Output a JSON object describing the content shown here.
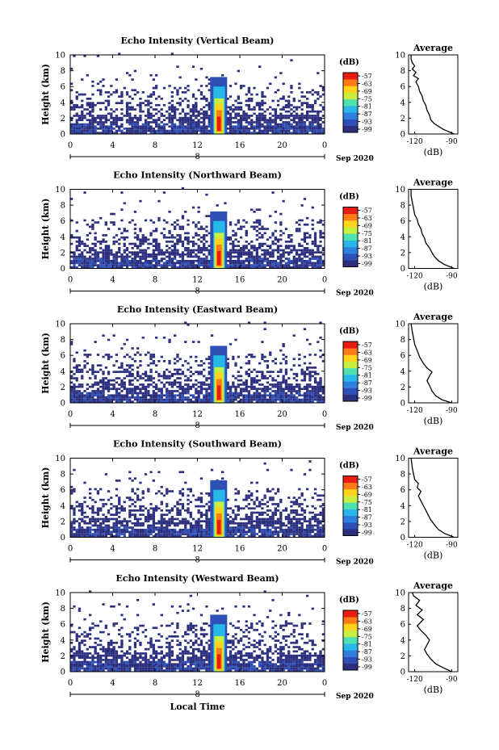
{
  "chart_data": {
    "type": "heatmap",
    "xlabel_bottom": "Local Time",
    "date_label": "Sep 2020",
    "x_ticks": [
      "0",
      "4",
      "8",
      "12",
      "16",
      "20",
      "0"
    ],
    "x_range": [
      0,
      24
    ],
    "day_label": "8",
    "y_ticks": [
      "0",
      "2",
      "4",
      "6",
      "8",
      "10"
    ],
    "ylabel": "Height (km)",
    "y_range": [
      0,
      10
    ],
    "colorbar": {
      "unit_label": "(dB)",
      "tick_labels": [
        "-57",
        "-63",
        "-69",
        "-75",
        "-81",
        "-87",
        "-93",
        "-99"
      ],
      "colors": [
        "#2b2f7e",
        "#2e4fb5",
        "#2f7fe0",
        "#26b8e8",
        "#4fe0b0",
        "#c8ef40",
        "#ffd21c",
        "#ff7a18",
        "#e81c10"
      ]
    },
    "panels": [
      {
        "title": "Echo Intensity (Vertical Beam)",
        "average": {
          "title": "Average",
          "xlabel": "(dB)",
          "x_ticks": [
            "-120",
            "-90"
          ],
          "xlim": [
            -125,
            -85
          ],
          "profile": [
            [
              -88,
              0.0
            ],
            [
              -97,
              0.6
            ],
            [
              -101,
              1.0
            ],
            [
              -104,
              1.3
            ],
            [
              -107,
              1.8
            ],
            [
              -108,
              2.4
            ],
            [
              -110,
              3.0
            ],
            [
              -111,
              3.6
            ],
            [
              -113,
              4.2
            ],
            [
              -114,
              4.8
            ],
            [
              -116,
              5.4
            ],
            [
              -117,
              6.0
            ],
            [
              -119,
              6.6
            ],
            [
              -117,
              7.0
            ],
            [
              -121,
              7.4
            ],
            [
              -119,
              7.8
            ],
            [
              -122,
              8.2
            ],
            [
              -120,
              8.6
            ],
            [
              -122,
              9.0
            ],
            [
              -123,
              9.5
            ],
            [
              -123,
              10.0
            ]
          ]
        }
      },
      {
        "title": "Echo Intensity (Northward Beam)",
        "average": {
          "title": "Average",
          "xlabel": "(dB)",
          "x_ticks": [
            "-120",
            "-90"
          ],
          "xlim": [
            -125,
            -85
          ],
          "profile": [
            [
              -88,
              0.0
            ],
            [
              -96,
              0.5
            ],
            [
              -101,
              1.0
            ],
            [
              -104,
              1.5
            ],
            [
              -106,
              2.0
            ],
            [
              -108,
              2.6
            ],
            [
              -111,
              3.2
            ],
            [
              -112,
              3.8
            ],
            [
              -114,
              4.4
            ],
            [
              -115,
              5.0
            ],
            [
              -117,
              5.6
            ],
            [
              -118,
              6.2
            ],
            [
              -120,
              6.8
            ],
            [
              -121,
              7.6
            ],
            [
              -122,
              8.4
            ],
            [
              -123,
              9.2
            ],
            [
              -123,
              10.0
            ]
          ]
        }
      },
      {
        "title": "Echo Intensity (Eastward Beam)",
        "average": {
          "title": "Average",
          "xlabel": "(dB)",
          "x_ticks": [
            "-120",
            "-90"
          ],
          "xlim": [
            -125,
            -85
          ],
          "profile": [
            [
              -90,
              0.0
            ],
            [
              -98,
              0.4
            ],
            [
              -103,
              0.9
            ],
            [
              -106,
              1.5
            ],
            [
              -108,
              2.2
            ],
            [
              -110,
              2.8
            ],
            [
              -108,
              3.4
            ],
            [
              -106,
              3.9
            ],
            [
              -110,
              4.4
            ],
            [
              -113,
              5.0
            ],
            [
              -116,
              5.8
            ],
            [
              -118,
              6.6
            ],
            [
              -120,
              7.4
            ],
            [
              -121,
              8.2
            ],
            [
              -122,
              9.0
            ],
            [
              -123,
              10.0
            ]
          ]
        }
      },
      {
        "title": "Echo Intensity (Southward Beam)",
        "average": {
          "title": "Average",
          "xlabel": "(dB)",
          "x_ticks": [
            "-120",
            "-90"
          ],
          "xlim": [
            -125,
            -85
          ],
          "profile": [
            [
              -88,
              0.0
            ],
            [
              -96,
              0.5
            ],
            [
              -101,
              1.0
            ],
            [
              -104,
              1.6
            ],
            [
              -107,
              2.2
            ],
            [
              -109,
              2.8
            ],
            [
              -111,
              3.4
            ],
            [
              -113,
              4.0
            ],
            [
              -115,
              4.6
            ],
            [
              -117,
              5.2
            ],
            [
              -115,
              5.8
            ],
            [
              -118,
              6.3
            ],
            [
              -117,
              6.8
            ],
            [
              -120,
              7.3
            ],
            [
              -121,
              8.0
            ],
            [
              -122,
              8.8
            ],
            [
              -123,
              10.0
            ]
          ]
        }
      },
      {
        "title": "Echo Intensity (Westward Beam)",
        "average": {
          "title": "Average",
          "xlabel": "(dB)",
          "x_ticks": [
            "-120",
            "-90"
          ],
          "xlim": [
            -125,
            -85
          ],
          "profile": [
            [
              -90,
              0.0
            ],
            [
              -97,
              0.5
            ],
            [
              -103,
              1.0
            ],
            [
              -107,
              1.6
            ],
            [
              -110,
              2.2
            ],
            [
              -112,
              2.8
            ],
            [
              -110,
              3.4
            ],
            [
              -108,
              4.0
            ],
            [
              -111,
              4.6
            ],
            [
              -115,
              5.2
            ],
            [
              -118,
              5.8
            ],
            [
              -113,
              6.6
            ],
            [
              -118,
              7.2
            ],
            [
              -114,
              7.8
            ],
            [
              -119,
              8.4
            ],
            [
              -116,
              9.0
            ],
            [
              -121,
              9.6
            ],
            [
              -122,
              10.0
            ]
          ]
        }
      }
    ]
  }
}
